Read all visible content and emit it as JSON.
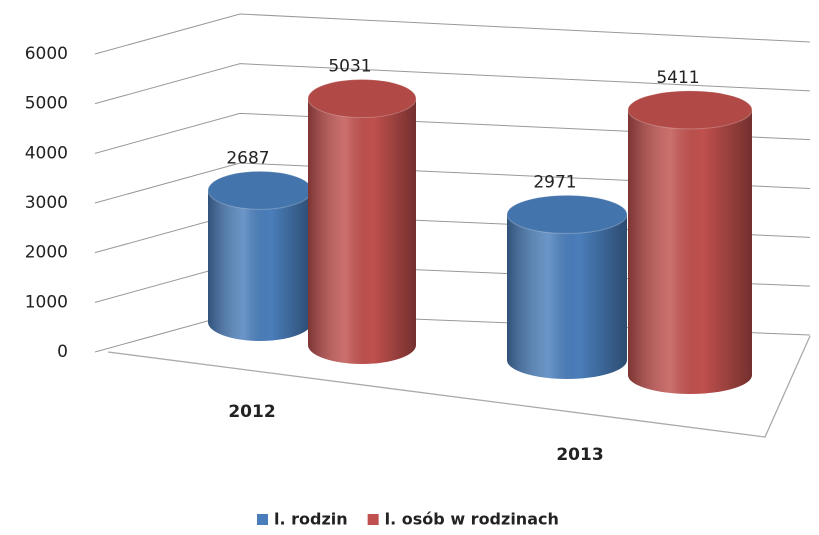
{
  "chart_data": {
    "type": "bar3d",
    "categories": [
      "2012",
      "2013"
    ],
    "series": [
      {
        "name": "l. rodzin",
        "color": "#4a7ebb",
        "values": [
          2687,
          2971
        ]
      },
      {
        "name": "l. osób w rodzinach",
        "color": "#c0504d",
        "values": [
          5031,
          5411
        ]
      }
    ],
    "ylim": [
      0,
      6000
    ],
    "yticks": [
      0,
      1000,
      2000,
      3000,
      4000,
      5000,
      6000
    ],
    "grid": true,
    "legend": "bottom"
  }
}
